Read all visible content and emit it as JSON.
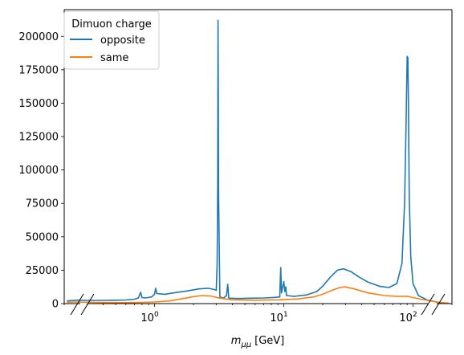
{
  "chart_data": {
    "type": "line",
    "title": "",
    "xlabel_main": "m",
    "xlabel_sub": "μμ",
    "xlabel_unit": "[GeV]",
    "xscale": "log",
    "xlim": [
      0.2,
      200
    ],
    "ylim": [
      0,
      220000
    ],
    "x_ticks": [
      {
        "base": "10",
        "exp": "0",
        "value": 1
      },
      {
        "base": "10",
        "exp": "1",
        "value": 10
      },
      {
        "base": "10",
        "exp": "2",
        "value": 100
      }
    ],
    "y_ticks": [
      "0",
      "25000",
      "50000",
      "75000",
      "100000",
      "125000",
      "150000",
      "175000",
      "200000"
    ],
    "legend": {
      "title": "Dimuon charge",
      "placement": "upper-left",
      "entries": [
        "opposite",
        "same"
      ]
    },
    "axis_breaks": "both-ends",
    "series": [
      {
        "name": "opposite",
        "color": "#1f77b4",
        "points": [
          [
            0.21,
            2000
          ],
          [
            0.25,
            2600
          ],
          [
            0.3,
            2400
          ],
          [
            0.4,
            2400
          ],
          [
            0.5,
            2500
          ],
          [
            0.6,
            2700
          ],
          [
            0.7,
            3300
          ],
          [
            0.75,
            4200
          ],
          [
            0.78,
            8500
          ],
          [
            0.8,
            4500
          ],
          [
            0.85,
            4200
          ],
          [
            0.95,
            5000
          ],
          [
            1.0,
            7000
          ],
          [
            1.02,
            11500
          ],
          [
            1.04,
            7500
          ],
          [
            1.2,
            7000
          ],
          [
            1.5,
            8500
          ],
          [
            1.8,
            9500
          ],
          [
            2.2,
            11000
          ],
          [
            2.6,
            11500
          ],
          [
            2.9,
            10500
          ],
          [
            3.0,
            10000
          ],
          [
            3.05,
            30000
          ],
          [
            3.08,
            90000
          ],
          [
            3.097,
            212000
          ],
          [
            3.11,
            164000
          ],
          [
            3.13,
            82000
          ],
          [
            3.2,
            5000
          ],
          [
            3.4,
            4000
          ],
          [
            3.6,
            6000
          ],
          [
            3.686,
            14500
          ],
          [
            3.75,
            4000
          ],
          [
            4.5,
            3800
          ],
          [
            5.5,
            4000
          ],
          [
            7,
            4200
          ],
          [
            8.5,
            4600
          ],
          [
            9.3,
            5000
          ],
          [
            9.46,
            27000
          ],
          [
            9.6,
            8000
          ],
          [
            10.0,
            16500
          ],
          [
            10.2,
            9000
          ],
          [
            10.36,
            12500
          ],
          [
            10.5,
            6000
          ],
          [
            12,
            5500
          ],
          [
            15,
            6500
          ],
          [
            18,
            9000
          ],
          [
            20,
            13000
          ],
          [
            23,
            20000
          ],
          [
            26,
            25000
          ],
          [
            29,
            26000
          ],
          [
            33,
            24000
          ],
          [
            38,
            20000
          ],
          [
            45,
            16000
          ],
          [
            55,
            13000
          ],
          [
            65,
            12000
          ],
          [
            75,
            15000
          ],
          [
            82,
            30000
          ],
          [
            86,
            75000
          ],
          [
            88.5,
            140000
          ],
          [
            90,
            185000
          ],
          [
            91.2,
            184000
          ],
          [
            92,
            155000
          ],
          [
            93.5,
            80000
          ],
          [
            96,
            35000
          ],
          [
            100,
            15000
          ],
          [
            110,
            6000
          ],
          [
            130,
            2500
          ],
          [
            160,
            800
          ],
          [
            190,
            200
          ]
        ]
      },
      {
        "name": "same",
        "color": "#ff7f0e",
        "points": [
          [
            0.21,
            1000
          ],
          [
            0.25,
            1200
          ],
          [
            0.3,
            1000
          ],
          [
            0.4,
            800
          ],
          [
            0.6,
            700
          ],
          [
            0.8,
            900
          ],
          [
            1.0,
            1200
          ],
          [
            1.3,
            2000
          ],
          [
            1.6,
            3500
          ],
          [
            2.0,
            5200
          ],
          [
            2.3,
            6000
          ],
          [
            2.7,
            5800
          ],
          [
            3.2,
            4000
          ],
          [
            4,
            2800
          ],
          [
            6,
            2500
          ],
          [
            9,
            2800
          ],
          [
            13,
            3500
          ],
          [
            17,
            5000
          ],
          [
            20,
            7000
          ],
          [
            23,
            9500
          ],
          [
            27,
            12000
          ],
          [
            30,
            12500
          ],
          [
            35,
            11000
          ],
          [
            45,
            8000
          ],
          [
            60,
            6000
          ],
          [
            75,
            5500
          ],
          [
            90,
            5500
          ],
          [
            100,
            4500
          ],
          [
            120,
            3000
          ],
          [
            150,
            1200
          ],
          [
            190,
            300
          ]
        ]
      }
    ]
  }
}
